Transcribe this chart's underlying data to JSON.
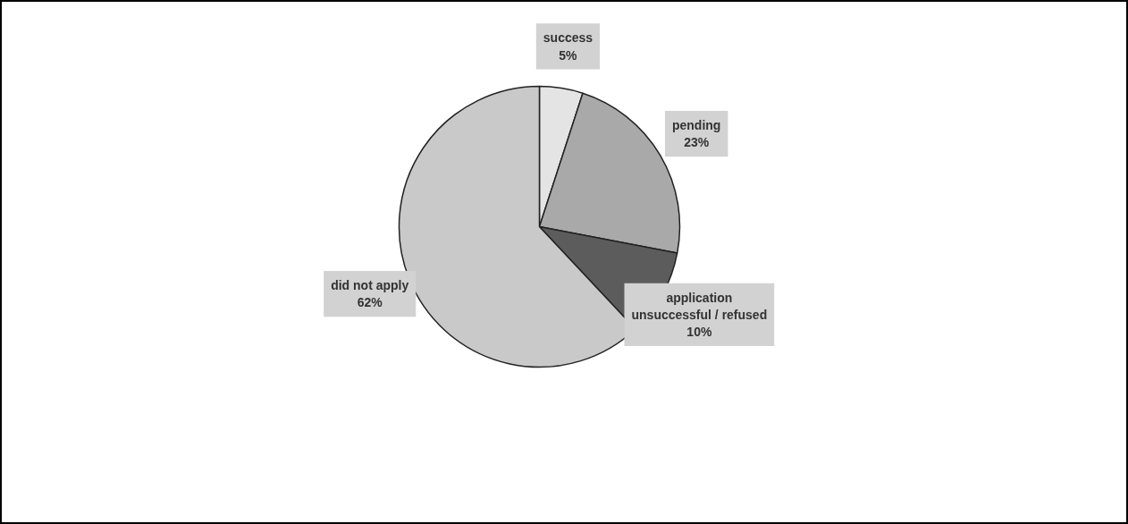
{
  "chart_data": {
    "type": "pie",
    "categories": [
      "success",
      "pending",
      "application unsuccessful / refused",
      "did not apply"
    ],
    "values": [
      5,
      23,
      10,
      62
    ],
    "colors": [
      "#e4e4e4",
      "#a9a9a9",
      "#5c5c5c",
      "#c9c9c9"
    ],
    "value_labels": [
      "5%",
      "23%",
      "10%",
      "62%"
    ]
  }
}
